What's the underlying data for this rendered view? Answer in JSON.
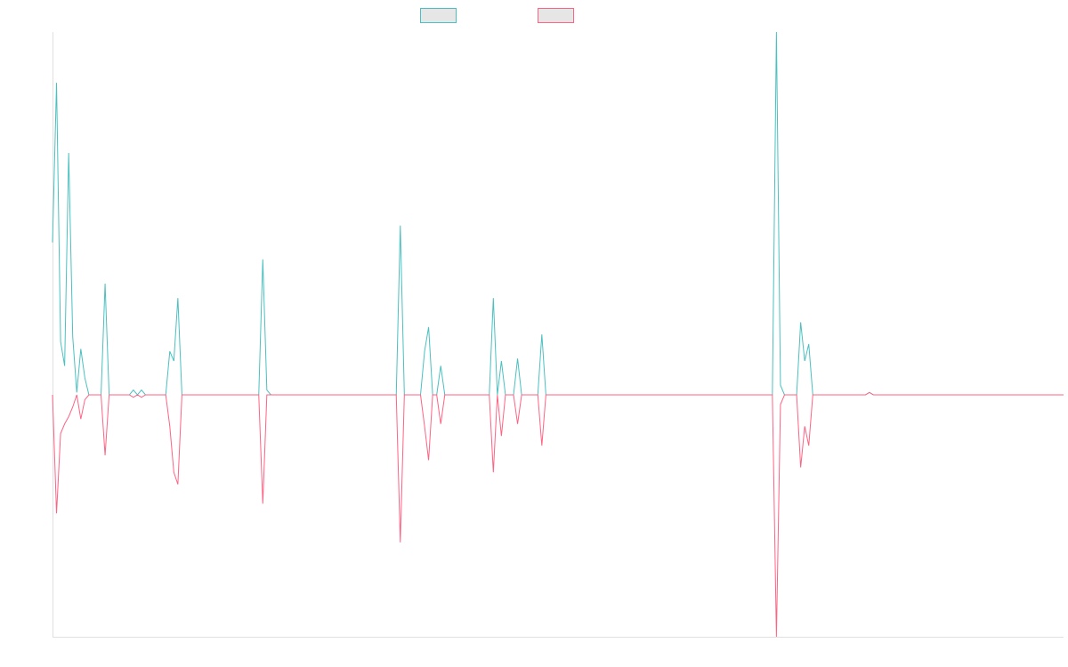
{
  "chart_data": {
    "type": "line",
    "ylim": [
      -100,
      150
    ],
    "series": [
      {
        "color": "#4bc0c0",
        "values": [
          63,
          129,
          22,
          12,
          100,
          24,
          1,
          19,
          7,
          0,
          0,
          0,
          0,
          46,
          0,
          0,
          0,
          0,
          0,
          0,
          2,
          0,
          2,
          0,
          0,
          0,
          0,
          0,
          0,
          18,
          14,
          40,
          0,
          0,
          0,
          0,
          0,
          0,
          0,
          0,
          0,
          0,
          0,
          0,
          0,
          0,
          0,
          0,
          0,
          0,
          0,
          0,
          56,
          2,
          0,
          0,
          0,
          0,
          0,
          0,
          0,
          0,
          0,
          0,
          0,
          0,
          0,
          0,
          0,
          0,
          0,
          0,
          0,
          0,
          0,
          0,
          0,
          0,
          0,
          0,
          0,
          0,
          0,
          0,
          0,
          0,
          70,
          0,
          0,
          0,
          0,
          0,
          18,
          28,
          0,
          0,
          12,
          0,
          0,
          0,
          0,
          0,
          0,
          0,
          0,
          0,
          0,
          0,
          0,
          40,
          0,
          14,
          0,
          0,
          0,
          15,
          0,
          0,
          0,
          0,
          0,
          25,
          0,
          0,
          0,
          0,
          0,
          0,
          0,
          0,
          0,
          0,
          0,
          0,
          0,
          0,
          0,
          0,
          0,
          0,
          0,
          0,
          0,
          0,
          0,
          0,
          0,
          0,
          0,
          0,
          0,
          0,
          0,
          0,
          0,
          0,
          0,
          0,
          0,
          0,
          0,
          0,
          0,
          0,
          0,
          0,
          0,
          0,
          0,
          0,
          0,
          0,
          0,
          0,
          0,
          0,
          0,
          0,
          0,
          150,
          4,
          0,
          0,
          0,
          0,
          30,
          14,
          21,
          0,
          0,
          0,
          0,
          0,
          0,
          0,
          0,
          0,
          0,
          0,
          0,
          0,
          0,
          1,
          0,
          0,
          0,
          0,
          0,
          0,
          0,
          0,
          0,
          0,
          0,
          0,
          0,
          0,
          0,
          0,
          0,
          0,
          0,
          0,
          0,
          0,
          0,
          0,
          0,
          0,
          0,
          0,
          0,
          0,
          0,
          0,
          0,
          0,
          0,
          0,
          0,
          0,
          0,
          0,
          0,
          0,
          0,
          0,
          0,
          0,
          0,
          0
        ]
      },
      {
        "color": "#ff6384",
        "values": [
          0,
          -49,
          -16,
          -12,
          -9,
          -5,
          0,
          -10,
          -2,
          0,
          0,
          0,
          0,
          -25,
          0,
          0,
          0,
          0,
          0,
          0,
          -1,
          0,
          -1,
          0,
          0,
          0,
          0,
          0,
          0,
          -13,
          -32,
          -37,
          0,
          0,
          0,
          0,
          0,
          0,
          0,
          0,
          0,
          0,
          0,
          0,
          0,
          0,
          0,
          0,
          0,
          0,
          0,
          0,
          -45,
          0,
          0,
          0,
          0,
          0,
          0,
          0,
          0,
          0,
          0,
          0,
          0,
          0,
          0,
          0,
          0,
          0,
          0,
          0,
          0,
          0,
          0,
          0,
          0,
          0,
          0,
          0,
          0,
          0,
          0,
          0,
          0,
          0,
          -61,
          0,
          0,
          0,
          0,
          0,
          -13,
          -27,
          0,
          0,
          -12,
          0,
          0,
          0,
          0,
          0,
          0,
          0,
          0,
          0,
          0,
          0,
          0,
          -32,
          0,
          -17,
          0,
          0,
          0,
          -12,
          0,
          0,
          0,
          0,
          0,
          -21,
          0,
          0,
          0,
          0,
          0,
          0,
          0,
          0,
          0,
          0,
          0,
          0,
          0,
          0,
          0,
          0,
          0,
          0,
          0,
          0,
          0,
          0,
          0,
          0,
          0,
          0,
          0,
          0,
          0,
          0,
          0,
          0,
          0,
          0,
          0,
          0,
          0,
          0,
          0,
          0,
          0,
          0,
          0,
          0,
          0,
          0,
          0,
          0,
          0,
          0,
          0,
          0,
          0,
          0,
          0,
          0,
          0,
          -100,
          -4,
          0,
          0,
          0,
          0,
          -30,
          -13,
          -21,
          0,
          0,
          0,
          0,
          0,
          0,
          0,
          0,
          0,
          0,
          0,
          0,
          0,
          0,
          1,
          0,
          0,
          0,
          0,
          0,
          0,
          0,
          0,
          0,
          0,
          0,
          0,
          0,
          0,
          0,
          0,
          0,
          0,
          0,
          0,
          0,
          0,
          0,
          0,
          0,
          0,
          0,
          0,
          0,
          0,
          0,
          0,
          0,
          0,
          0,
          0,
          0,
          0,
          0,
          0,
          0,
          0,
          0,
          0,
          0,
          0,
          0,
          0
        ]
      }
    ]
  }
}
